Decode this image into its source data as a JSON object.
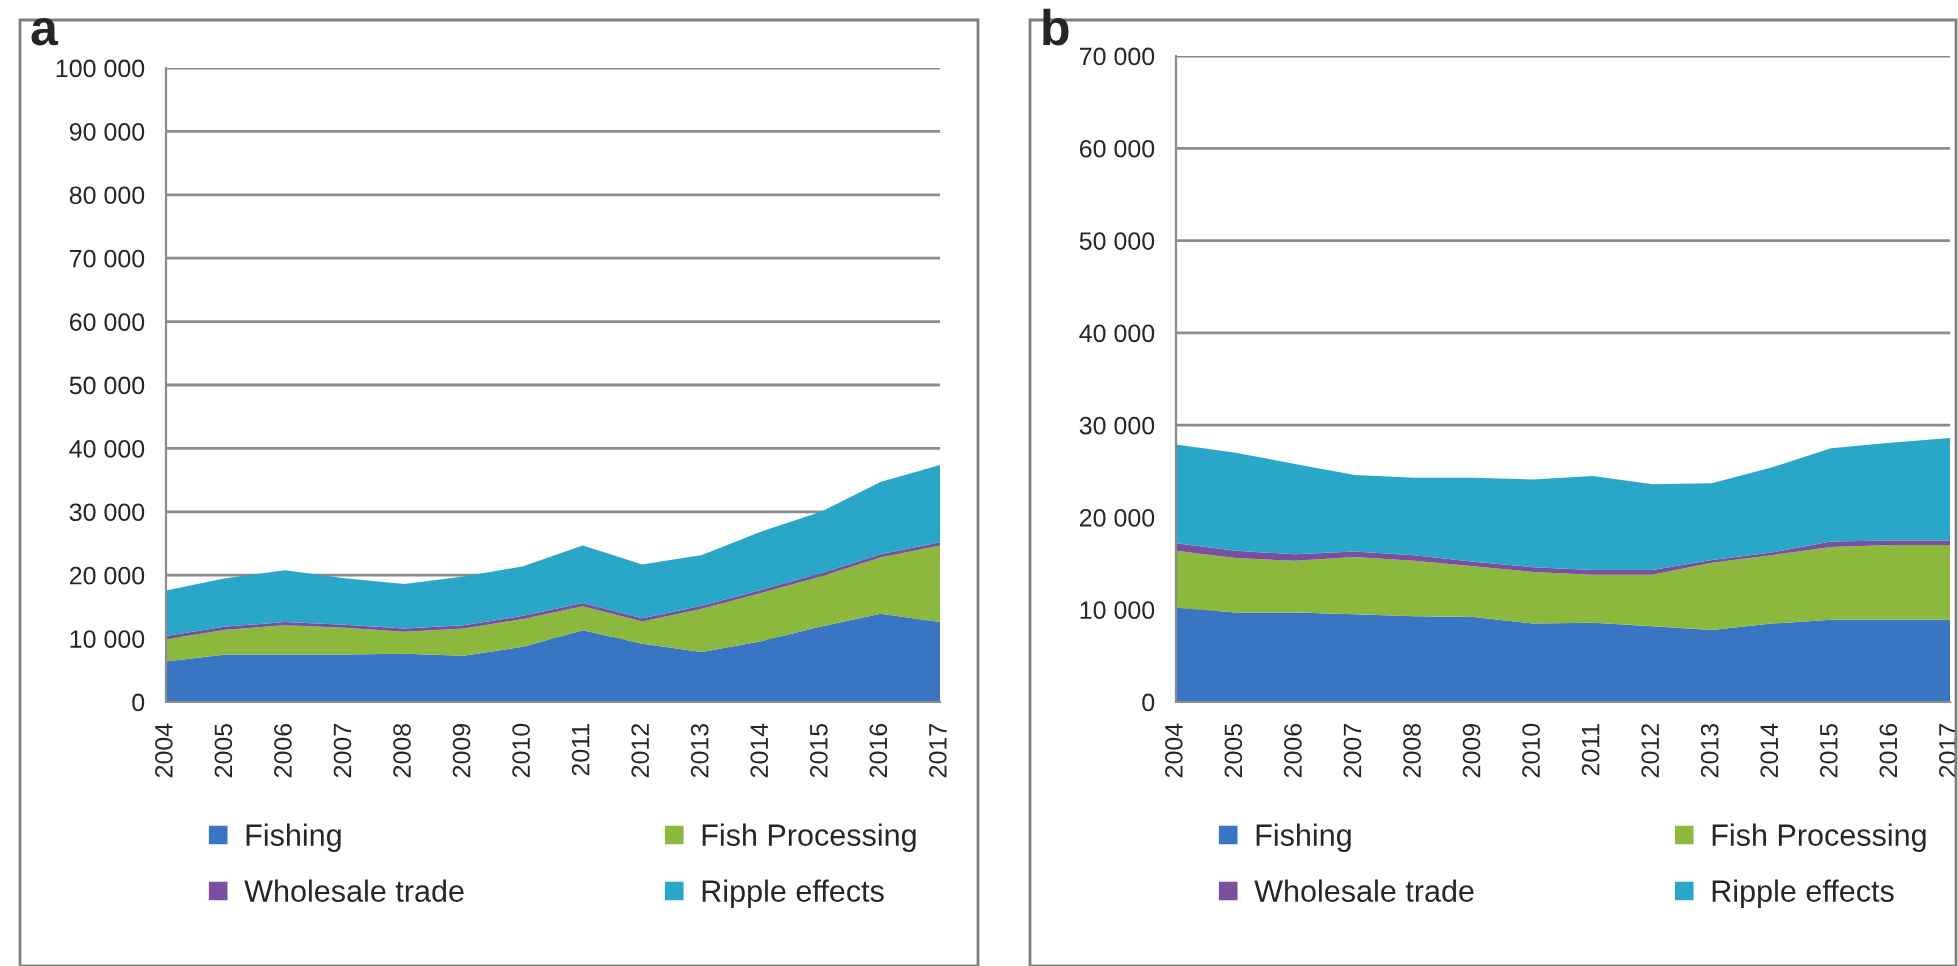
{
  "chart_data": [
    {
      "type": "area",
      "stacked": true,
      "annotations": [
        "a"
      ],
      "categories": [
        "2004",
        "2005",
        "2006",
        "2007",
        "2008",
        "2009",
        "2010",
        "2011",
        "2012",
        "2013",
        "2014",
        "2015",
        "2016",
        "2017"
      ],
      "series": [
        {
          "name": "Fishing",
          "color": "#3a75c4",
          "values": [
            6400,
            7500,
            7500,
            7500,
            7600,
            7300,
            8700,
            11300,
            9200,
            7900,
            9600,
            11900,
            13900,
            12600
          ]
        },
        {
          "name": "Fish Processing",
          "color": "#8db83e",
          "values": [
            3500,
            3900,
            4600,
            4200,
            3500,
            4300,
            4400,
            3800,
            3500,
            6800,
            7600,
            7900,
            8900,
            12100
          ]
        },
        {
          "name": "Wholesale trade",
          "color": "#7b4fa0",
          "values": [
            500,
            500,
            500,
            500,
            500,
            500,
            500,
            500,
            500,
            500,
            500,
            500,
            500,
            500
          ]
        },
        {
          "name": "Ripple effects",
          "color": "#2aa6c8",
          "values": [
            7200,
            7600,
            8200,
            7300,
            7000,
            7700,
            7800,
            9100,
            8500,
            8000,
            9200,
            9700,
            11400,
            12200
          ]
        }
      ],
      "ylim": [
        0,
        100000
      ],
      "yticks": [
        0,
        {
          "value": 10000,
          "label": "10 000"
        },
        {
          "value": 20000,
          "label": "20 000"
        },
        {
          "value": 30000,
          "label": "30 000"
        },
        {
          "value": 40000,
          "label": "40 000"
        },
        {
          "value": 50000,
          "label": "50 000"
        },
        {
          "value": 60000,
          "label": "60 000"
        },
        {
          "value": 70000,
          "label": "70 000"
        },
        {
          "value": 80000,
          "label": "80 000"
        },
        {
          "value": 90000,
          "label": "90 000"
        },
        {
          "value": 100000,
          "label": "100 000"
        }
      ],
      "grid": "y",
      "legend": "bottom"
    },
    {
      "type": "area",
      "stacked": true,
      "annotations": [
        "b"
      ],
      "categories": [
        "2004",
        "2005",
        "2006",
        "2007",
        "2008",
        "2009",
        "2010",
        "2011",
        "2012",
        "2013",
        "2014",
        "2015",
        "2016",
        "2017"
      ],
      "series": [
        {
          "name": "Fishing",
          "color": "#3a75c4",
          "values": [
            10200,
            9700,
            9700,
            9500,
            9300,
            9200,
            8500,
            8600,
            8200,
            7800,
            8500,
            8900,
            8900,
            8900
          ]
        },
        {
          "name": "Fish Processing",
          "color": "#8db83e",
          "values": [
            6200,
            5900,
            5600,
            6200,
            6000,
            5500,
            5600,
            5200,
            5600,
            7300,
            7400,
            7900,
            8100,
            8100
          ]
        },
        {
          "name": "Wholesale trade",
          "color": "#7b4fa0",
          "values": [
            800,
            800,
            700,
            600,
            600,
            500,
            500,
            500,
            500,
            300,
            300,
            600,
            500,
            500
          ]
        },
        {
          "name": "Ripple effects",
          "color": "#2aa6c8",
          "values": [
            10700,
            10600,
            9800,
            8300,
            8400,
            9100,
            9500,
            10200,
            9300,
            8300,
            9200,
            10100,
            10600,
            11100
          ]
        }
      ],
      "ylim": [
        0,
        70000
      ],
      "yticks": [
        0,
        {
          "value": 10000,
          "label": "10 000"
        },
        {
          "value": 20000,
          "label": "20 000"
        },
        {
          "value": 30000,
          "label": "30 000"
        },
        {
          "value": 40000,
          "label": "40 000"
        },
        {
          "value": 50000,
          "label": "50 000"
        },
        {
          "value": 60000,
          "label": "60 000"
        },
        {
          "value": 70000,
          "label": "70 000"
        }
      ],
      "grid": "y",
      "legend": "bottom"
    }
  ]
}
